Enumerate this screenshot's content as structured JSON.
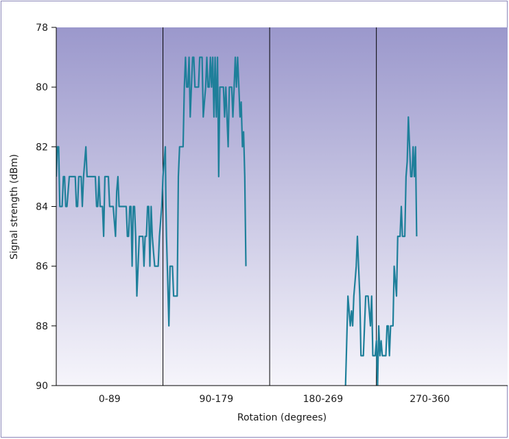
{
  "chart_data": {
    "type": "line",
    "title": "",
    "xlabel": "Rotation (degrees)",
    "ylabel": "Signal strength (dBm)",
    "ylim": [
      78,
      90
    ],
    "y_inverted": true,
    "y_ticks": [
      "78",
      "80",
      "82",
      "84",
      "86",
      "88",
      "90"
    ],
    "x_range": [
      0,
      360
    ],
    "segments": [
      {
        "label": "0-89",
        "from": 0,
        "to": 90
      },
      {
        "label": "90-179",
        "from": 90,
        "to": 180
      },
      {
        "label": "180-269",
        "from": 180,
        "to": 270
      },
      {
        "label": "270-360",
        "from": 270,
        "to": 360
      }
    ],
    "grid": false,
    "line_color": "#1e7f9a",
    "background_gradient": [
      "#9b98cc",
      "#f6f5fb"
    ],
    "series": [
      {
        "points": [
          [
            0,
            83
          ],
          [
            1,
            82
          ],
          [
            2,
            82
          ],
          [
            3,
            84
          ],
          [
            4,
            84
          ],
          [
            5,
            84
          ],
          [
            6,
            83
          ],
          [
            7,
            83
          ],
          [
            8,
            84
          ],
          [
            9,
            84
          ],
          [
            10,
            83.5
          ],
          [
            11,
            83
          ],
          [
            12,
            83
          ],
          [
            13,
            83
          ],
          [
            14,
            83
          ],
          [
            15,
            83
          ],
          [
            16,
            83
          ],
          [
            17,
            84
          ],
          [
            18,
            84
          ],
          [
            19,
            83
          ],
          [
            20,
            83
          ],
          [
            21,
            83
          ],
          [
            22,
            84
          ],
          [
            23,
            83
          ],
          [
            24,
            82.5
          ],
          [
            25,
            82
          ],
          [
            26,
            83
          ],
          [
            27,
            83
          ],
          [
            28,
            83
          ],
          [
            29,
            83
          ],
          [
            30,
            83
          ],
          [
            31,
            83
          ],
          [
            32,
            83
          ],
          [
            33,
            83
          ],
          [
            34,
            84
          ],
          [
            35,
            84
          ],
          [
            36,
            83
          ],
          [
            37,
            84
          ],
          [
            38,
            84
          ],
          [
            39,
            84
          ],
          [
            40,
            85
          ],
          [
            41,
            83
          ],
          [
            42,
            83
          ],
          [
            43,
            83
          ],
          [
            44,
            83
          ],
          [
            45,
            84
          ],
          [
            46,
            84
          ],
          [
            47,
            84
          ],
          [
            48,
            84
          ],
          [
            49,
            84.5
          ],
          [
            50,
            85
          ],
          [
            51,
            83.5
          ],
          [
            52,
            83
          ],
          [
            53,
            84
          ],
          [
            54,
            84
          ],
          [
            55,
            84
          ],
          [
            56,
            84
          ],
          [
            57,
            84
          ],
          [
            58,
            84
          ],
          [
            59,
            84
          ],
          [
            60,
            85
          ],
          [
            61,
            85
          ],
          [
            62,
            84
          ],
          [
            63,
            84
          ],
          [
            64,
            86
          ],
          [
            65,
            84
          ],
          [
            66,
            84
          ],
          [
            67,
            85
          ],
          [
            68,
            87
          ],
          [
            69,
            86
          ],
          [
            70,
            85
          ],
          [
            71,
            85
          ],
          [
            72,
            85
          ],
          [
            73,
            85
          ],
          [
            74,
            86
          ],
          [
            75,
            85
          ],
          [
            76,
            85
          ],
          [
            77,
            84
          ],
          [
            78,
            84
          ],
          [
            79,
            86
          ],
          [
            80,
            84
          ],
          [
            81,
            85
          ],
          [
            82,
            85.5
          ],
          [
            83,
            86
          ],
          [
            84,
            86
          ],
          [
            85,
            86
          ],
          [
            86,
            86
          ],
          [
            87,
            85
          ],
          [
            88,
            84.5
          ],
          [
            89,
            84
          ],
          [
            90,
            83
          ],
          [
            91,
            82.5
          ],
          [
            92,
            82
          ],
          [
            92.5,
            84
          ],
          [
            93,
            85
          ],
          [
            94,
            86.5
          ],
          [
            95,
            88
          ],
          [
            96,
            86
          ],
          [
            97,
            86
          ],
          [
            98,
            86
          ],
          [
            99,
            87
          ],
          [
            100,
            87
          ],
          [
            101,
            87
          ],
          [
            102,
            87
          ],
          [
            103,
            83
          ],
          [
            104,
            82
          ],
          [
            105,
            82
          ],
          [
            106,
            82
          ],
          [
            107,
            82
          ],
          [
            108,
            80
          ],
          [
            109,
            79
          ],
          [
            110,
            80
          ],
          [
            111,
            80
          ],
          [
            112,
            79
          ],
          [
            113,
            81
          ],
          [
            114,
            80
          ],
          [
            115,
            79
          ],
          [
            116,
            79
          ],
          [
            117,
            80
          ],
          [
            118,
            80
          ],
          [
            119,
            80
          ],
          [
            120,
            80
          ],
          [
            121,
            79
          ],
          [
            122,
            79
          ],
          [
            123,
            79
          ],
          [
            124,
            81
          ],
          [
            125,
            80.5
          ],
          [
            126,
            80
          ],
          [
            127,
            79
          ],
          [
            128,
            80
          ],
          [
            129,
            80
          ],
          [
            130,
            79
          ],
          [
            131,
            80
          ],
          [
            132,
            79
          ],
          [
            133,
            81
          ],
          [
            134,
            79
          ],
          [
            135,
            81
          ],
          [
            136,
            79
          ],
          [
            137,
            83
          ],
          [
            138,
            80
          ],
          [
            139,
            80
          ],
          [
            140,
            80
          ],
          [
            141,
            80
          ],
          [
            142,
            81
          ],
          [
            143,
            80
          ],
          [
            144,
            81
          ],
          [
            145,
            82
          ],
          [
            146,
            80
          ],
          [
            147,
            80
          ],
          [
            148,
            80
          ],
          [
            149,
            81
          ],
          [
            150,
            80
          ],
          [
            151,
            79
          ],
          [
            152,
            80
          ],
          [
            153,
            79
          ],
          [
            154,
            80
          ],
          [
            155,
            81
          ],
          [
            156,
            80.5
          ],
          [
            157,
            82
          ],
          [
            158,
            81.5
          ],
          [
            159,
            83
          ],
          [
            160,
            86
          ]
        ]
      },
      {
        "points": [
          [
            244,
            90
          ],
          [
            246,
            87
          ],
          [
            248,
            88
          ],
          [
            249,
            87.5
          ],
          [
            250,
            88
          ],
          [
            251,
            87
          ],
          [
            252,
            86.5
          ],
          [
            253,
            86
          ],
          [
            254,
            85
          ],
          [
            255,
            86
          ],
          [
            256,
            87
          ],
          [
            257,
            89
          ],
          [
            258,
            89
          ],
          [
            259,
            89
          ],
          [
            260,
            88
          ],
          [
            261,
            87
          ],
          [
            262,
            87
          ],
          [
            263,
            87
          ],
          [
            264,
            87.5
          ],
          [
            265,
            88
          ],
          [
            266,
            87
          ],
          [
            267,
            89
          ],
          [
            268,
            89
          ],
          [
            269,
            89
          ],
          [
            270,
            88.5
          ],
          [
            271,
            90
          ],
          [
            272,
            88
          ],
          [
            273,
            89
          ],
          [
            274,
            88.5
          ],
          [
            275,
            89
          ],
          [
            276,
            89
          ],
          [
            277,
            89
          ],
          [
            278,
            89
          ],
          [
            279,
            88
          ],
          [
            280,
            88
          ],
          [
            281,
            89
          ],
          [
            282,
            88
          ],
          [
            283,
            88
          ],
          [
            284,
            88
          ],
          [
            285,
            86
          ],
          [
            286,
            86.5
          ],
          [
            287,
            87
          ],
          [
            288,
            85
          ],
          [
            289,
            85
          ],
          [
            290,
            85
          ],
          [
            291,
            84
          ],
          [
            292,
            85
          ],
          [
            293,
            85
          ],
          [
            294,
            85
          ],
          [
            295,
            83
          ],
          [
            296,
            82.5
          ],
          [
            297,
            81
          ],
          [
            298,
            82
          ],
          [
            299,
            83
          ],
          [
            300,
            83
          ],
          [
            301,
            82
          ],
          [
            302,
            83
          ],
          [
            303,
            82
          ],
          [
            304,
            85
          ]
        ]
      }
    ]
  }
}
